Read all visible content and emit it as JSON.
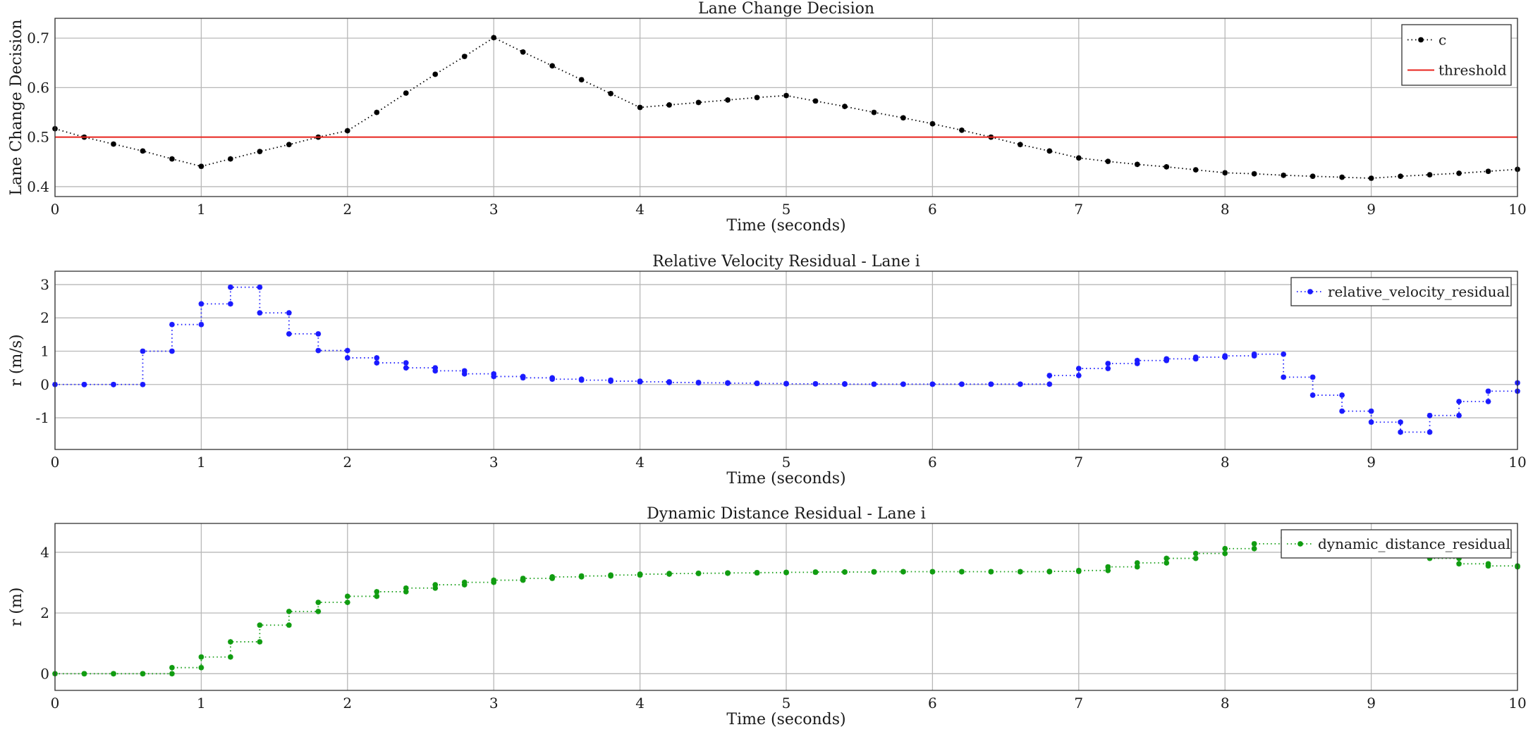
{
  "chart_data": [
    {
      "type": "line",
      "title": "Lane Change Decision",
      "xlabel": "Time (seconds)",
      "ylabel": "Lane Change Decision",
      "xlim": [
        0,
        10
      ],
      "ylim": [
        0.38,
        0.74
      ],
      "xticks": [
        0,
        1,
        2,
        3,
        4,
        5,
        6,
        7,
        8,
        9,
        10
      ],
      "yticks": [
        0.4,
        0.5,
        0.6,
        0.7
      ],
      "tick_labels_x": [
        "0",
        "1",
        "2",
        "3",
        "4",
        "5",
        "6",
        "7",
        "8",
        "9",
        "10"
      ],
      "tick_labels_y": [
        "0.4",
        "0.5",
        "0.6",
        "0.7"
      ],
      "grid": true,
      "legend": "top-right",
      "series": [
        {
          "name": "c",
          "color": "#000000",
          "style": "dotted-marker",
          "x": [
            0,
            0.2,
            0.4,
            0.6,
            0.8,
            1.0,
            1.2,
            1.4,
            1.6,
            1.8,
            2.0,
            2.2,
            2.4,
            2.6,
            2.8,
            3.0,
            3.2,
            3.4,
            3.6,
            3.8,
            4.0,
            4.2,
            4.4,
            4.6,
            4.8,
            5.0,
            5.2,
            5.4,
            5.6,
            5.8,
            6.0,
            6.2,
            6.4,
            6.6,
            6.8,
            7.0,
            7.2,
            7.4,
            7.6,
            7.8,
            8.0,
            8.2,
            8.4,
            8.6,
            8.8,
            9.0,
            9.2,
            9.4,
            9.6,
            9.8,
            10.0
          ],
          "y": [
            0.517,
            0.5,
            0.486,
            0.472,
            0.456,
            0.441,
            0.456,
            0.471,
            0.485,
            0.5,
            0.513,
            0.55,
            0.589,
            0.627,
            0.663,
            0.701,
            0.672,
            0.644,
            0.616,
            0.588,
            0.56,
            0.565,
            0.57,
            0.575,
            0.58,
            0.584,
            0.573,
            0.562,
            0.55,
            0.539,
            0.527,
            0.514,
            0.5,
            0.485,
            0.472,
            0.458,
            0.451,
            0.445,
            0.44,
            0.434,
            0.428,
            0.426,
            0.423,
            0.421,
            0.419,
            0.417,
            0.421,
            0.424,
            0.427,
            0.431,
            0.435
          ]
        },
        {
          "name": "threshold",
          "color": "#e8231c",
          "style": "solid",
          "x": [
            0,
            10
          ],
          "y": [
            0.5,
            0.5
          ]
        }
      ]
    },
    {
      "type": "line",
      "title": "Relative Velocity Residual - Lane i",
      "xlabel": "Time (seconds)",
      "ylabel": "r (m/s)",
      "xlim": [
        0,
        10
      ],
      "ylim": [
        -1.95,
        3.4
      ],
      "xticks": [
        0,
        1,
        2,
        3,
        4,
        5,
        6,
        7,
        8,
        9,
        10
      ],
      "yticks": [
        -1,
        0,
        1,
        2,
        3
      ],
      "tick_labels_x": [
        "0",
        "1",
        "2",
        "3",
        "4",
        "5",
        "6",
        "7",
        "8",
        "9",
        "10"
      ],
      "tick_labels_y": [
        "-1",
        "0",
        "1",
        "2",
        "3"
      ],
      "grid": true,
      "legend": "top-right",
      "series": [
        {
          "name": "relative_velocity_residual",
          "color": "#1a1aff",
          "style": "dotted-stairs-marker",
          "x": [
            0,
            0.2,
            0.4,
            0.6,
            0.8,
            1.0,
            1.2,
            1.4,
            1.6,
            1.8,
            2.0,
            2.2,
            2.4,
            2.6,
            2.8,
            3.0,
            3.2,
            3.4,
            3.6,
            3.8,
            4.0,
            4.2,
            4.4,
            4.6,
            4.8,
            5.0,
            5.2,
            5.4,
            5.6,
            5.8,
            6.0,
            6.2,
            6.4,
            6.6,
            6.8,
            7.0,
            7.2,
            7.4,
            7.6,
            7.8,
            8.0,
            8.2,
            8.4,
            8.6,
            8.8,
            9.0,
            9.2,
            9.4,
            9.6,
            9.8,
            10.0
          ],
          "y": [
            0,
            0,
            0,
            1.0,
            1.8,
            2.42,
            2.92,
            2.15,
            1.52,
            1.02,
            0.8,
            0.65,
            0.5,
            0.41,
            0.32,
            0.24,
            0.2,
            0.16,
            0.13,
            0.1,
            0.08,
            0.06,
            0.05,
            0.04,
            0.03,
            0.02,
            0.02,
            0.01,
            0.01,
            0.01,
            0.01,
            0.01,
            0.01,
            0.01,
            0.27,
            0.48,
            0.63,
            0.72,
            0.77,
            0.82,
            0.86,
            0.91,
            0.22,
            -0.32,
            -0.8,
            -1.13,
            -1.43,
            -0.93,
            -0.51,
            -0.2,
            0.05
          ]
        }
      ]
    },
    {
      "type": "line",
      "title": "Dynamic Distance Residual - Lane i",
      "xlabel": "Time (seconds)",
      "ylabel": "r (m)",
      "xlim": [
        0,
        10
      ],
      "ylim": [
        -0.55,
        4.95
      ],
      "xticks": [
        0,
        1,
        2,
        3,
        4,
        5,
        6,
        7,
        8,
        9,
        10
      ],
      "yticks": [
        0,
        2,
        4
      ],
      "tick_labels_x": [
        "0",
        "1",
        "2",
        "3",
        "4",
        "5",
        "6",
        "7",
        "8",
        "9",
        "10"
      ],
      "tick_labels_y": [
        "0",
        "2",
        "4"
      ],
      "grid": true,
      "legend": "top-right",
      "series": [
        {
          "name": "dynamic_distance_residual",
          "color": "#109c10",
          "style": "dotted-stairs-marker",
          "x": [
            0,
            0.2,
            0.4,
            0.6,
            0.8,
            1.0,
            1.2,
            1.4,
            1.6,
            1.8,
            2.0,
            2.2,
            2.4,
            2.6,
            2.8,
            3.0,
            3.2,
            3.4,
            3.6,
            3.8,
            4.0,
            4.2,
            4.4,
            4.6,
            4.8,
            5.0,
            5.2,
            5.4,
            5.6,
            5.8,
            6.0,
            6.2,
            6.4,
            6.6,
            6.8,
            7.0,
            7.2,
            7.4,
            7.6,
            7.8,
            8.0,
            8.2,
            8.4,
            8.6,
            8.8,
            9.0,
            9.2,
            9.4,
            9.6,
            9.8,
            10.0
          ],
          "y": [
            0,
            0,
            0,
            0,
            0.2,
            0.55,
            1.05,
            1.6,
            2.05,
            2.35,
            2.55,
            2.7,
            2.82,
            2.93,
            3.01,
            3.08,
            3.14,
            3.19,
            3.22,
            3.25,
            3.28,
            3.3,
            3.31,
            3.32,
            3.33,
            3.34,
            3.35,
            3.35,
            3.36,
            3.36,
            3.36,
            3.36,
            3.36,
            3.36,
            3.37,
            3.4,
            3.52,
            3.65,
            3.8,
            3.96,
            4.12,
            4.28,
            4.48,
            4.4,
            4.2,
            4.0,
            3.9,
            3.8,
            3.62,
            3.55,
            3.52
          ]
        }
      ]
    }
  ]
}
